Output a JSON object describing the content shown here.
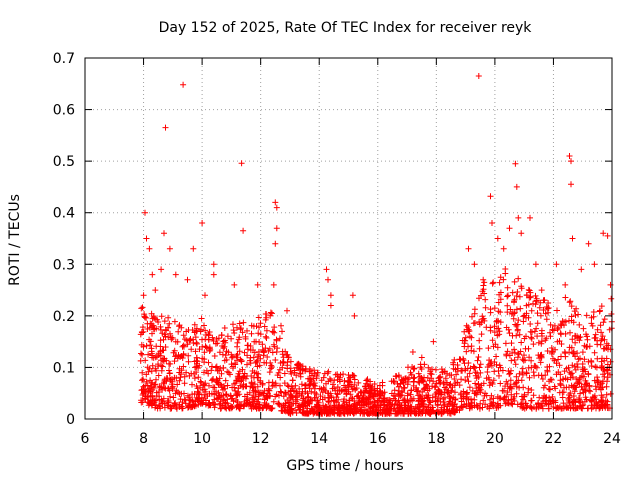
{
  "chart_data": {
    "type": "scatter",
    "title": "Day 152 of 2025, Rate Of TEC Index for receiver reyk",
    "xlabel": "GPS time / hours",
    "ylabel": "ROTI / TECUs",
    "xlim": [
      6,
      24
    ],
    "ylim": [
      0,
      0.7
    ],
    "xticks": [
      "6",
      "8",
      "10",
      "12",
      "14",
      "16",
      "18",
      "20",
      "22",
      "24"
    ],
    "yticks": [
      "0",
      "0.1",
      "0.2",
      "0.3",
      "0.4",
      "0.5",
      "0.6",
      "0.7"
    ],
    "grid": true,
    "marker": "plus",
    "color": "#ff0000",
    "series": [
      {
        "points": [
          [
            8.0,
            0.24
          ],
          [
            8.05,
            0.4
          ],
          [
            8.1,
            0.35
          ],
          [
            8.2,
            0.33
          ],
          [
            8.3,
            0.28
          ],
          [
            8.4,
            0.25
          ],
          [
            8.6,
            0.29
          ],
          [
            8.7,
            0.36
          ],
          [
            8.75,
            0.565
          ],
          [
            8.9,
            0.33
          ],
          [
            9.1,
            0.28
          ],
          [
            9.35,
            0.648
          ],
          [
            9.5,
            0.27
          ],
          [
            9.7,
            0.33
          ],
          [
            10.0,
            0.38
          ],
          [
            10.1,
            0.24
          ],
          [
            10.4,
            0.3
          ],
          [
            10.4,
            0.28
          ],
          [
            11.1,
            0.26
          ],
          [
            11.35,
            0.496
          ],
          [
            11.4,
            0.365
          ],
          [
            11.9,
            0.26
          ],
          [
            12.5,
            0.42
          ],
          [
            12.55,
            0.41
          ],
          [
            12.55,
            0.37
          ],
          [
            12.5,
            0.34
          ],
          [
            12.45,
            0.26
          ],
          [
            12.9,
            0.21
          ],
          [
            14.25,
            0.29
          ],
          [
            14.3,
            0.27
          ],
          [
            14.4,
            0.24
          ],
          [
            14.4,
            0.22
          ],
          [
            15.15,
            0.24
          ],
          [
            15.2,
            0.2
          ],
          [
            17.2,
            0.13
          ],
          [
            17.9,
            0.15
          ],
          [
            19.1,
            0.33
          ],
          [
            19.3,
            0.3
          ],
          [
            19.45,
            0.665
          ],
          [
            19.6,
            0.27
          ],
          [
            19.85,
            0.432
          ],
          [
            19.9,
            0.38
          ],
          [
            20.1,
            0.35
          ],
          [
            20.3,
            0.33
          ],
          [
            20.5,
            0.37
          ],
          [
            20.7,
            0.495
          ],
          [
            20.75,
            0.45
          ],
          [
            20.8,
            0.39
          ],
          [
            20.9,
            0.36
          ],
          [
            21.2,
            0.39
          ],
          [
            21.4,
            0.3
          ],
          [
            21.6,
            0.25
          ],
          [
            22.1,
            0.3
          ],
          [
            22.4,
            0.26
          ],
          [
            22.55,
            0.51
          ],
          [
            22.6,
            0.5
          ],
          [
            22.6,
            0.455
          ],
          [
            22.65,
            0.35
          ],
          [
            22.95,
            0.29
          ],
          [
            23.2,
            0.34
          ],
          [
            23.4,
            0.3
          ],
          [
            23.7,
            0.36
          ],
          [
            23.85,
            0.355
          ],
          [
            23.95,
            0.26
          ]
        ],
        "density_profile": {
          "x": [
            8,
            8.5,
            9,
            9.5,
            10,
            10.5,
            11,
            11.5,
            12,
            12.5,
            13,
            13.5,
            14,
            14.5,
            15,
            15.5,
            16,
            16.5,
            17,
            17.5,
            18,
            18.5,
            19,
            19.5,
            20,
            20.5,
            21,
            21.5,
            22,
            22.5,
            23,
            23.5,
            24
          ],
          "low": [
            0.03,
            0.02,
            0.02,
            0.02,
            0.03,
            0.02,
            0.02,
            0.02,
            0.02,
            0.02,
            0.01,
            0.01,
            0.01,
            0.01,
            0.01,
            0.01,
            0.01,
            0.01,
            0.01,
            0.01,
            0.01,
            0.01,
            0.02,
            0.02,
            0.02,
            0.03,
            0.02,
            0.02,
            0.02,
            0.02,
            0.02,
            0.02,
            0.02
          ],
          "high": [
            0.22,
            0.2,
            0.2,
            0.19,
            0.2,
            0.16,
            0.19,
            0.19,
            0.2,
            0.22,
            0.12,
            0.1,
            0.1,
            0.09,
            0.09,
            0.08,
            0.07,
            0.08,
            0.1,
            0.12,
            0.1,
            0.1,
            0.18,
            0.26,
            0.28,
            0.3,
            0.26,
            0.24,
            0.22,
            0.24,
            0.2,
            0.21,
            0.24
          ]
        }
      }
    ]
  }
}
